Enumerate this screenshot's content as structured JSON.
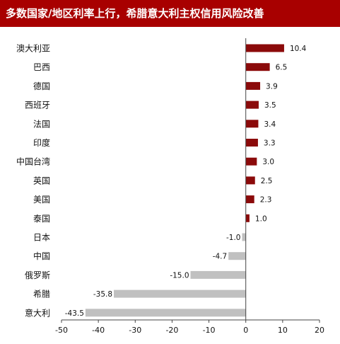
{
  "chart_data": {
    "type": "bar",
    "orientation": "horizontal",
    "title": "多数国家/地区利率上行，希腊意大利主权信用风险改善",
    "categories": [
      "澳大利亚",
      "巴西",
      "德国",
      "西班牙",
      "法国",
      "印度",
      "中国台湾",
      "英国",
      "美国",
      "泰国",
      "日本",
      "中国",
      "俄罗斯",
      "希腊",
      "意大利"
    ],
    "values": [
      10.4,
      6.5,
      3.9,
      3.5,
      3.4,
      3.3,
      3.0,
      2.5,
      2.3,
      1.0,
      -1.0,
      -4.7,
      -15.0,
      -35.8,
      -43.5
    ],
    "value_labels": [
      "10.4",
      "6.5",
      "3.9",
      "3.5",
      "3.4",
      "3.3",
      "3.0",
      "2.5",
      "2.3",
      "1.0",
      "-1.0",
      "-4.7",
      "-15.0",
      "-35.8",
      "-43.5"
    ],
    "xlim": [
      -50,
      20
    ],
    "xticks": [
      -50,
      -40,
      -30,
      -20,
      -10,
      0,
      10,
      20
    ],
    "xtick_labels": [
      "-50",
      "-40",
      "-30",
      "-20",
      "-10",
      "0",
      "10",
      "20"
    ],
    "grid": false,
    "colors": {
      "positive": "#8b0a0a",
      "negative": "#c0c0c0",
      "header": "#a80000"
    }
  }
}
